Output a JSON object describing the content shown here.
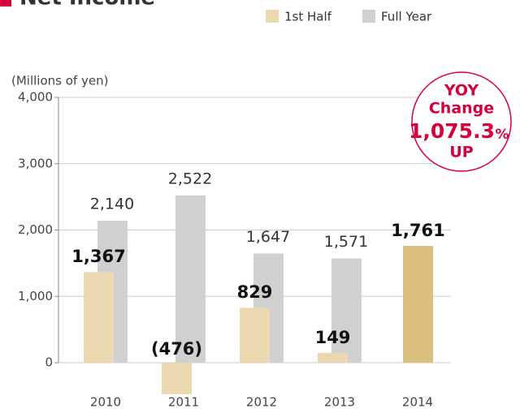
{
  "chart_data": {
    "type": "bar",
    "title": "Net Income",
    "y_label": "(Millions of yen)",
    "categories": [
      "2010",
      "2011",
      "2012",
      "2013",
      "2014"
    ],
    "series": [
      {
        "name": "1st Half",
        "color": "#ead9b0",
        "colors": [
          "#ead9b0",
          "#ead9b0",
          "#ead9b0",
          "#ead9b0",
          "#dcc07e"
        ],
        "values": [
          1367,
          -476,
          829,
          149,
          1761
        ],
        "value_labels": [
          "1,367",
          "(476)",
          "829",
          "149",
          "1,761"
        ]
      },
      {
        "name": "Full Year",
        "color": "#d0d0d0",
        "values": [
          2140,
          2522,
          1647,
          1571,
          null
        ],
        "value_labels": [
          "2,140",
          "2,522",
          "1,647",
          "1,571",
          null
        ]
      }
    ],
    "ylim": [
      -500,
      4000
    ],
    "yticks": [
      0,
      {
        "value": 1000,
        "label": "1,000"
      },
      {
        "value": 2000,
        "label": "2,000"
      },
      {
        "value": 3000,
        "label": "3,000"
      },
      {
        "value": 4000,
        "label": "4,000"
      }
    ],
    "grid": true,
    "annotation": {
      "line1": "YOY",
      "line2": "Change",
      "value": "1,075.3",
      "unit": "%",
      "line3": "UP"
    }
  }
}
